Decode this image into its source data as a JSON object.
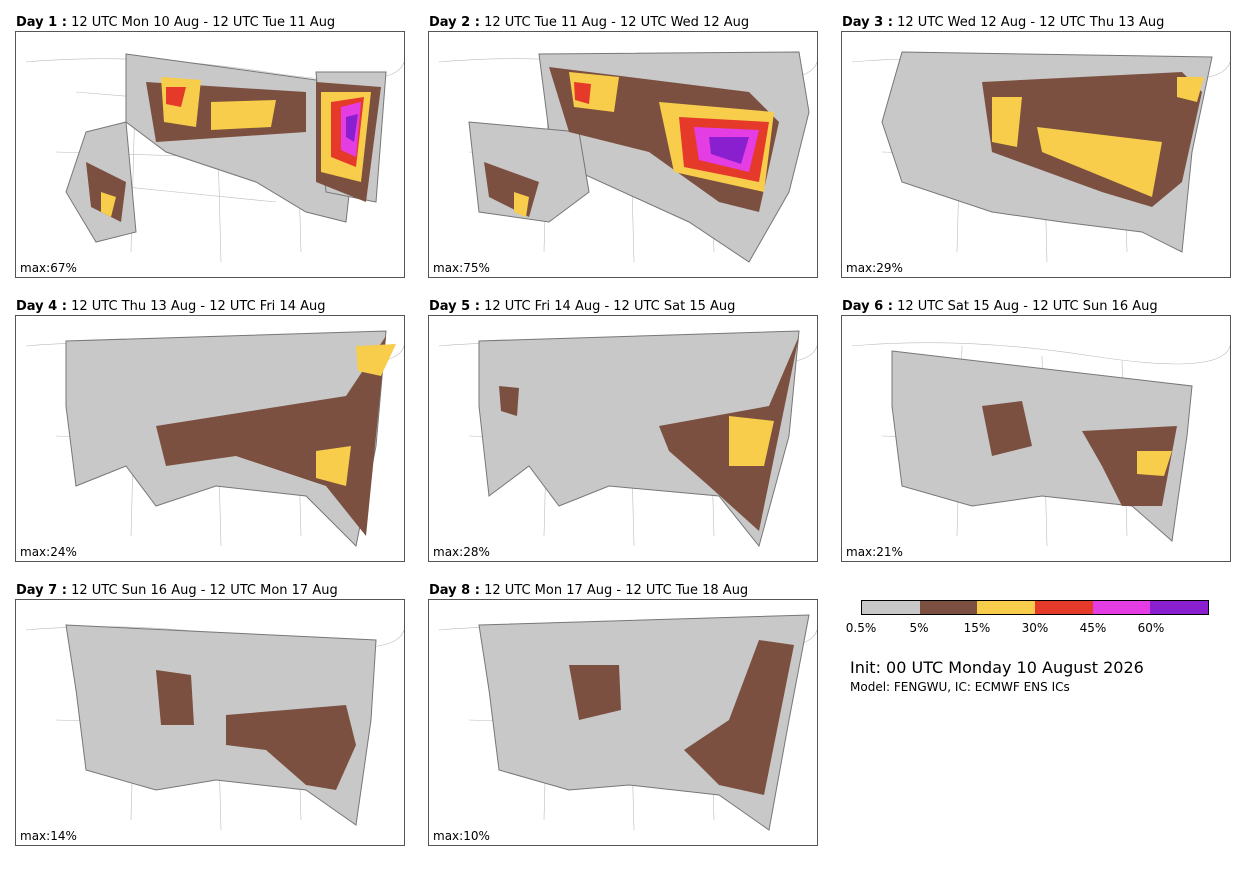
{
  "panels": [
    {
      "day": "Day 1 :",
      "range": "12 UTC Mon 10 Aug - 12 UTC Tue 11 Aug",
      "max": "max:67%"
    },
    {
      "day": "Day 2 :",
      "range": "12 UTC Tue 11 Aug - 12 UTC Wed 12 Aug",
      "max": "max:75%"
    },
    {
      "day": "Day 3 :",
      "range": "12 UTC Wed 12 Aug - 12 UTC Thu 13 Aug",
      "max": "max:29%"
    },
    {
      "day": "Day 4 :",
      "range": "12 UTC Thu 13 Aug - 12 UTC Fri 14 Aug",
      "max": "max:24%"
    },
    {
      "day": "Day 5 :",
      "range": "12 UTC Fri 14 Aug - 12 UTC Sat 15 Aug",
      "max": "max:28%"
    },
    {
      "day": "Day 6 :",
      "range": "12 UTC Sat 15 Aug - 12 UTC Sun 16 Aug",
      "max": "max:21%"
    },
    {
      "day": "Day 7 :",
      "range": "12 UTC Sun 16 Aug - 12 UTC Mon 17 Aug",
      "max": "max:14%"
    },
    {
      "day": "Day 8 :",
      "range": "12 UTC Mon 17 Aug - 12 UTC Tue 18 Aug",
      "max": "max:10%"
    }
  ],
  "colorbar": {
    "colors": [
      "#c8c8c8",
      "#7b5040",
      "#f7cd4b",
      "#e53a2a",
      "#e43de4",
      "#8a1fd0"
    ],
    "labels": [
      "0.5%",
      "5%",
      "15%",
      "30%",
      "45%",
      "60%"
    ]
  },
  "init": "Init: 00 UTC Monday 10 August 2026",
  "model": "Model: FENGWU, IC: ECMWF ENS ICs"
}
